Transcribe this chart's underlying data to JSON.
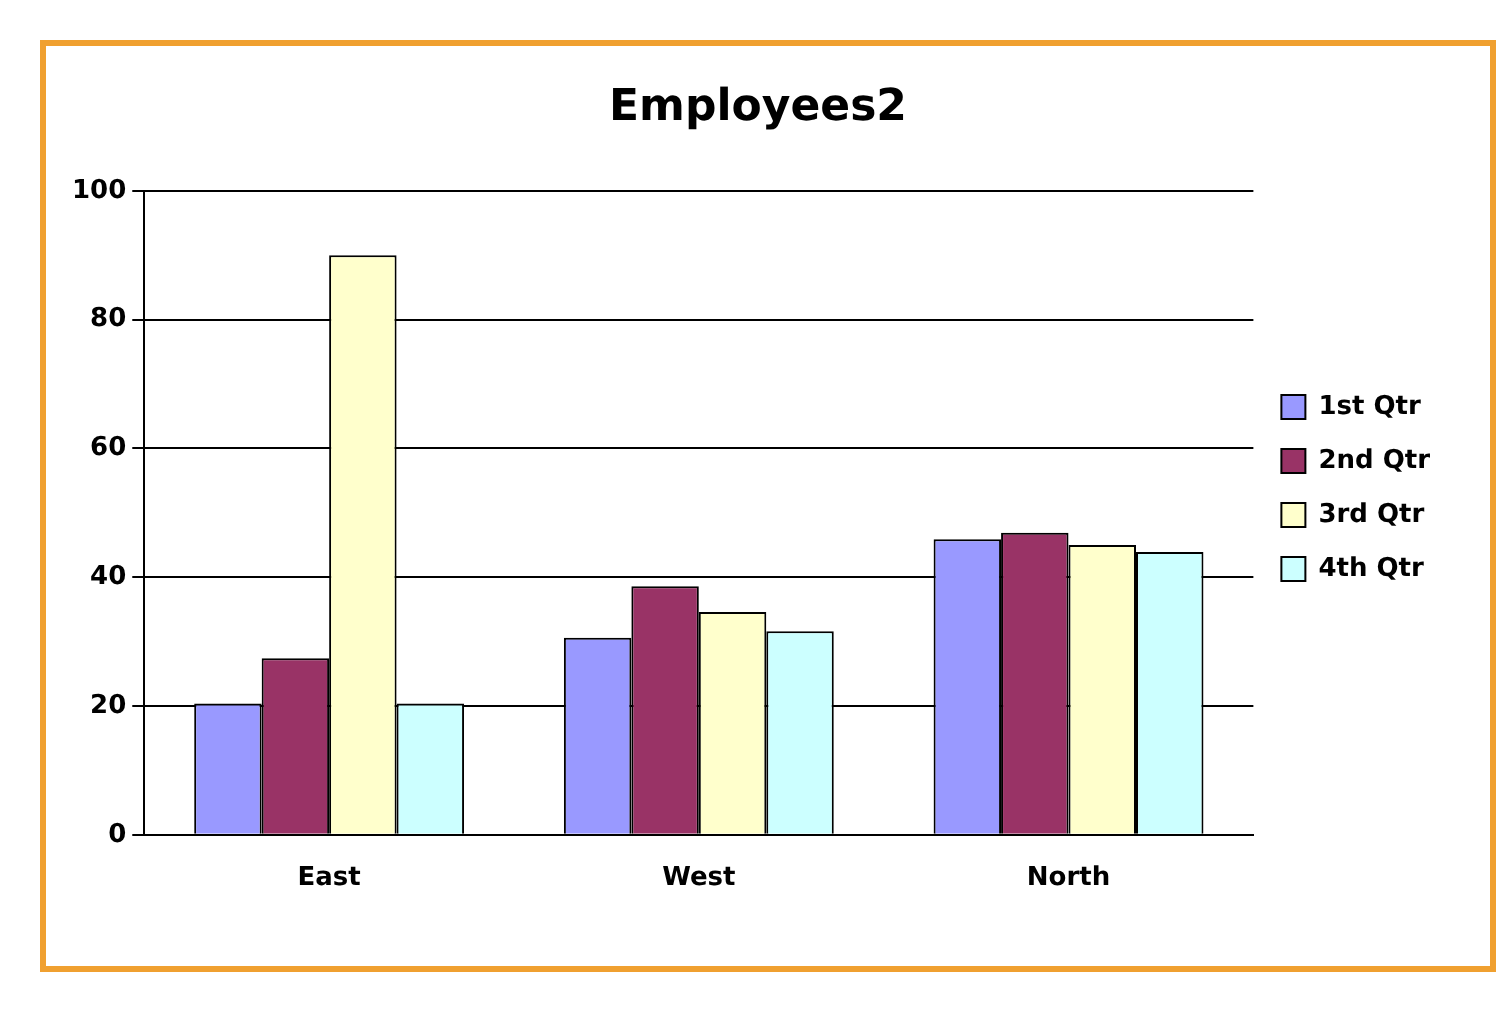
{
  "chart_data": {
    "type": "bar",
    "title": "Employees2",
    "categories": [
      "East",
      "West",
      "North"
    ],
    "series": [
      {
        "name": "1st Qtr",
        "color": "#9999ff",
        "values": [
          20.4,
          30.6,
          45.9
        ]
      },
      {
        "name": "2nd Qtr",
        "color": "#993366",
        "values": [
          27.4,
          38.6,
          46.9
        ]
      },
      {
        "name": "3rd Qtr",
        "color": "#ffffcc",
        "values": [
          90,
          34.6,
          45
        ]
      },
      {
        "name": "4th Qtr",
        "color": "#ccffff",
        "values": [
          20.4,
          31.6,
          43.9
        ]
      }
    ],
    "ylim": [
      0,
      100
    ],
    "yticks": [
      0,
      20,
      40,
      60,
      80,
      100
    ],
    "grid": "y",
    "legend": "right"
  }
}
